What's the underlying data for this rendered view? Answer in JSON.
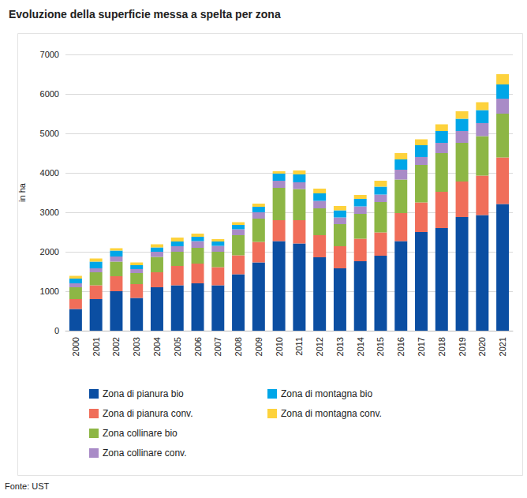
{
  "chart_data": {
    "type": "bar",
    "title": "Evoluzione della superficie messa a spelta per zona",
    "y_label": "in ha",
    "source": "Fonte: UST",
    "stacked": true,
    "grid": true,
    "legend": "bottom",
    "categories": [
      "2000",
      "2001",
      "2002",
      "2003",
      "2004",
      "2005",
      "2006",
      "2007",
      "2008",
      "2009",
      "2010",
      "2011",
      "2012",
      "2013",
      "2014",
      "2015",
      "2016",
      "2017",
      "2018",
      "2019",
      "2020",
      "2021"
    ],
    "ylim": [
      0,
      7000
    ],
    "yticks": [
      0,
      1000,
      2000,
      3000,
      4000,
      5000,
      6000,
      7000
    ],
    "series": [
      {
        "name": "Zona di pianura bio",
        "color": "#0b4ea2",
        "values": [
          550,
          800,
          1000,
          830,
          1100,
          1150,
          1200,
          1150,
          1430,
          1730,
          2270,
          2210,
          1860,
          1580,
          1760,
          1900,
          2270,
          2500,
          2600,
          2880,
          2930,
          3210
        ]
      },
      {
        "name": "Zona di pianura conv.",
        "color": "#f06e5a",
        "values": [
          250,
          350,
          380,
          350,
          380,
          490,
          500,
          460,
          480,
          520,
          530,
          590,
          560,
          560,
          570,
          590,
          710,
          750,
          920,
          900,
          1000,
          1180
        ]
      },
      {
        "name": "Zona collinare bio",
        "color": "#8db645",
        "values": [
          300,
          330,
          370,
          280,
          390,
          360,
          400,
          390,
          510,
          590,
          820,
          790,
          680,
          560,
          630,
          770,
          850,
          950,
          980,
          980,
          1000,
          1110
        ]
      },
      {
        "name": "Zona collinare conv.",
        "color": "#a98bc7",
        "values": [
          100,
          100,
          130,
          100,
          130,
          140,
          170,
          150,
          150,
          160,
          180,
          170,
          190,
          170,
          190,
          190,
          250,
          200,
          260,
          300,
          330,
          380
        ]
      },
      {
        "name": "Zona di montagna bio",
        "color": "#00a6e8",
        "values": [
          120,
          170,
          150,
          100,
          110,
          120,
          110,
          110,
          110,
          140,
          180,
          200,
          190,
          180,
          190,
          200,
          260,
          300,
          300,
          310,
          330,
          360
        ]
      },
      {
        "name": "Zona di montagna conv.",
        "color": "#fdd23c",
        "values": [
          70,
          80,
          60,
          70,
          80,
          100,
          80,
          60,
          70,
          80,
          60,
          100,
          120,
          110,
          100,
          150,
          160,
          150,
          170,
          190,
          200,
          260
        ]
      }
    ]
  }
}
